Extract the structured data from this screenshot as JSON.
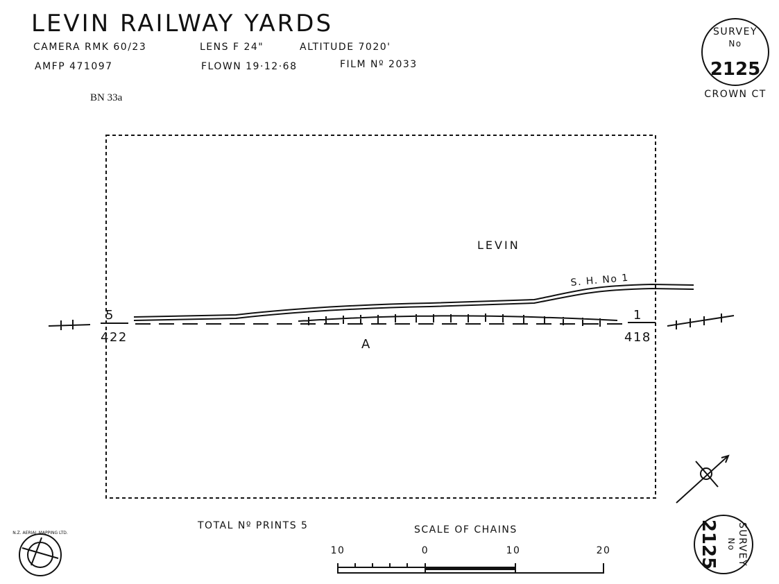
{
  "header": {
    "title": "LEVIN RAILWAY YARDS",
    "camera": "CAMERA RMK 60/23",
    "lens": "LENS F 24\"",
    "altitude": "ALTITUDE 7020'",
    "amfp": "AMFP 471097",
    "flown": "FLOWN 19·12·68",
    "film": "FILM Nº 2033",
    "reference": "BN 33a"
  },
  "survey_stamp": {
    "label": "SURVEY",
    "no": "No",
    "number": "2125",
    "owner": "CROWN CT"
  },
  "map": {
    "town": "LEVIN",
    "highway": "S. H. No 1",
    "run": "A",
    "left_end": {
      "print": "5",
      "frame": "422"
    },
    "right_end": {
      "print": "1",
      "frame": "418"
    }
  },
  "footer": {
    "total_prints": "TOTAL Nº PRINTS 5",
    "scale_title": "SCALE OF CHAINS",
    "scale_labels": [
      "10",
      "0",
      "10",
      "20"
    ],
    "logo": "N.Z. AERIAL MAPPING LTD."
  },
  "bottom_stamp": {
    "label": "SURVEY",
    "no": "No",
    "number": "2125"
  }
}
